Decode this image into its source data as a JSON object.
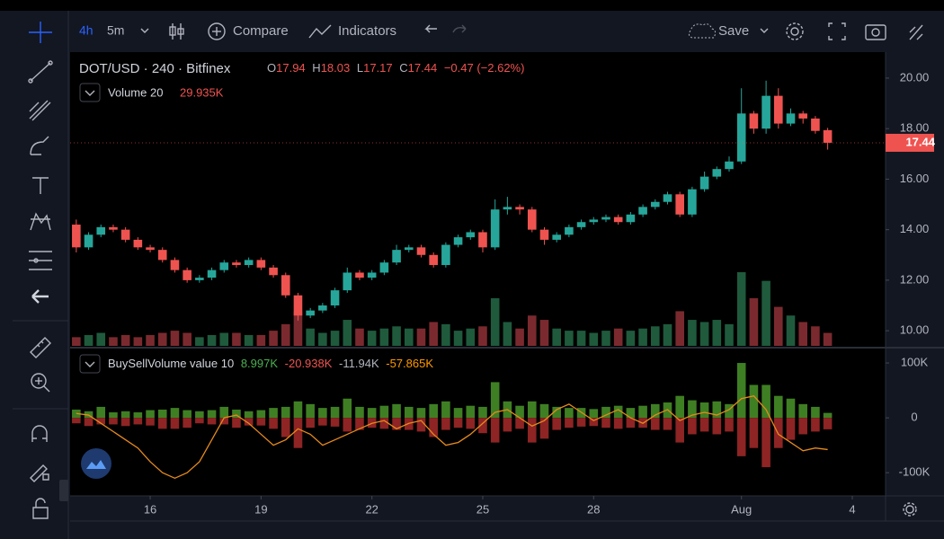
{
  "toolbar": {
    "interval": "4h",
    "interval_alt": "5m",
    "compare": "Compare",
    "indicators": "Indicators",
    "save": "Save"
  },
  "chart_data": [
    {
      "type": "candlestick",
      "title": "DOT/USD · 240 · Bitfinex",
      "ohlc_letters": [
        "O",
        "H",
        "L",
        "C"
      ],
      "change_text": "−0.47 (−2.62%)",
      "x": [
        0,
        1,
        2,
        3,
        4,
        5,
        6,
        7,
        8,
        9,
        10,
        11,
        12,
        13,
        14,
        15,
        16,
        17,
        18,
        19,
        20,
        21,
        22,
        23,
        24,
        25,
        26,
        27,
        28,
        29,
        30,
        31,
        32,
        33,
        34,
        35,
        36,
        37,
        38,
        39,
        40,
        41,
        42,
        43,
        44,
        45,
        46,
        47,
        48,
        49,
        50,
        51,
        52,
        53,
        54,
        55,
        56,
        57,
        58,
        59,
        60,
        61
      ],
      "xlim": [
        -0.5,
        65.7
      ],
      "xticks": [
        {
          "value": 6,
          "label": "16"
        },
        {
          "value": 15,
          "label": "19"
        },
        {
          "value": 24,
          "label": "22"
        },
        {
          "value": 33,
          "label": "25"
        },
        {
          "value": 42,
          "label": "28"
        },
        {
          "value": 54,
          "label": "Aug"
        },
        {
          "value": 63,
          "label": "4"
        }
      ],
      "open": [
        14.2,
        13.3,
        13.8,
        14.1,
        14.0,
        13.6,
        13.3,
        13.2,
        12.8,
        12.4,
        12.0,
        12.1,
        12.4,
        12.7,
        12.6,
        12.8,
        12.5,
        12.2,
        11.4,
        10.6,
        10.8,
        11.0,
        11.6,
        12.3,
        12.1,
        12.3,
        12.7,
        13.2,
        13.3,
        13.0,
        12.6,
        13.4,
        13.7,
        13.9,
        13.3,
        14.8,
        14.9,
        14.8,
        14.0,
        13.6,
        13.8,
        14.1,
        14.3,
        14.4,
        14.5,
        14.3,
        14.6,
        14.9,
        15.1,
        15.4,
        14.6,
        15.6,
        16.1,
        16.4,
        16.7,
        18.6,
        18.0,
        19.3,
        18.2,
        18.6,
        18.4,
        17.94
      ],
      "high": [
        14.4,
        13.9,
        14.2,
        14.2,
        14.1,
        13.7,
        13.4,
        13.3,
        12.9,
        12.5,
        12.2,
        12.5,
        12.8,
        12.8,
        12.9,
        12.9,
        12.6,
        12.3,
        11.5,
        10.9,
        11.1,
        11.7,
        12.5,
        12.4,
        12.4,
        12.8,
        13.4,
        13.4,
        13.4,
        13.1,
        13.5,
        13.8,
        14.0,
        14.0,
        15.2,
        15.3,
        15.0,
        14.9,
        14.1,
        13.9,
        14.2,
        14.4,
        14.5,
        14.6,
        14.6,
        14.7,
        15.0,
        15.2,
        15.5,
        15.5,
        15.7,
        16.3,
        16.5,
        16.9,
        19.6,
        18.7,
        19.9,
        19.6,
        18.8,
        18.7,
        18.5,
        18.03
      ],
      "low": [
        13.1,
        13.2,
        13.7,
        13.9,
        13.5,
        13.2,
        13.1,
        12.7,
        12.3,
        11.9,
        11.9,
        12.0,
        12.3,
        12.5,
        12.5,
        12.4,
        12.1,
        11.3,
        10.4,
        10.5,
        10.7,
        10.9,
        11.5,
        12.0,
        12.0,
        12.2,
        12.6,
        13.1,
        12.9,
        12.5,
        12.5,
        13.3,
        13.6,
        13.1,
        13.2,
        14.6,
        14.6,
        13.9,
        13.4,
        13.5,
        13.7,
        14.0,
        14.2,
        14.3,
        14.2,
        14.2,
        14.5,
        14.8,
        15.0,
        14.5,
        14.5,
        15.5,
        16.0,
        16.3,
        16.6,
        17.8,
        17.8,
        18.0,
        18.1,
        18.2,
        17.8,
        17.17
      ],
      "close": [
        13.3,
        13.8,
        14.1,
        14.0,
        13.6,
        13.3,
        13.2,
        12.8,
        12.4,
        12.0,
        12.1,
        12.4,
        12.7,
        12.6,
        12.8,
        12.5,
        12.2,
        11.4,
        10.6,
        10.8,
        11.0,
        11.6,
        12.3,
        12.1,
        12.3,
        12.7,
        13.2,
        13.3,
        13.0,
        12.6,
        13.4,
        13.7,
        13.9,
        13.3,
        14.8,
        14.9,
        14.8,
        14.0,
        13.6,
        13.8,
        14.1,
        14.3,
        14.4,
        14.5,
        14.3,
        14.6,
        14.9,
        15.1,
        15.4,
        14.6,
        15.6,
        16.1,
        16.4,
        16.7,
        18.6,
        18.0,
        19.3,
        18.2,
        18.6,
        18.4,
        17.91,
        17.44
      ],
      "up_color": "#26a69a",
      "down_color": "#ef5350",
      "ylim": [
        9.4,
        21.03
      ],
      "yticks": [
        {
          "value": 10,
          "label": "10.00"
        },
        {
          "value": 12,
          "label": "12.00"
        },
        {
          "value": 14,
          "label": "14.00"
        },
        {
          "value": 16,
          "label": "16.00"
        },
        {
          "value": 18,
          "label": "18.00"
        },
        {
          "value": 20,
          "label": "20.00"
        }
      ],
      "volume": {
        "name": "Volume 20",
        "up_color": "#1f5a3c",
        "down_color": "#7a2a2e",
        "values": [
          20,
          25,
          30,
          20,
          25,
          20,
          25,
          30,
          35,
          30,
          20,
          25,
          30,
          30,
          25,
          25,
          35,
          50,
          80,
          40,
          30,
          35,
          60,
          40,
          35,
          40,
          45,
          40,
          40,
          55,
          50,
          35,
          40,
          45,
          110,
          55,
          40,
          70,
          60,
          40,
          35,
          35,
          30,
          35,
          40,
          35,
          40,
          45,
          50,
          80,
          60,
          55,
          60,
          50,
          170,
          110,
          150,
          90,
          70,
          55,
          45,
          29.935
        ],
        "last_value_label": "29.935K"
      }
    },
    {
      "type": "bar",
      "title": "BuySellVolume value 10",
      "ylim": [
        -139,
        123
      ],
      "yticks": [
        {
          "value": 100,
          "label": "100K"
        },
        0,
        {
          "value": -100,
          "label": "-100K"
        }
      ],
      "series": [
        {
          "color": "#3f7f23",
          "values": [
            15,
            12,
            20,
            10,
            12,
            10,
            14,
            15,
            18,
            14,
            12,
            14,
            20,
            15,
            12,
            14,
            18,
            20,
            30,
            25,
            18,
            20,
            35,
            20,
            18,
            22,
            25,
            20,
            18,
            25,
            30,
            18,
            22,
            20,
            65,
            30,
            22,
            30,
            25,
            20,
            18,
            18,
            16,
            20,
            22,
            18,
            22,
            25,
            28,
            40,
            32,
            28,
            30,
            25,
            100,
            60,
            60,
            40,
            35,
            25,
            20,
            8.997
          ],
          "last_value_label": "8.997K",
          "label_color": "#4caf50"
        },
        {
          "color": "#8e2424",
          "values": [
            -10,
            -15,
            -12,
            -12,
            -15,
            -12,
            -14,
            -20,
            -20,
            -18,
            -10,
            -12,
            -12,
            -18,
            -14,
            -14,
            -20,
            -35,
            -55,
            -18,
            -14,
            -16,
            -25,
            -22,
            -18,
            -20,
            -22,
            -22,
            -25,
            -35,
            -22,
            -18,
            -20,
            -28,
            -45,
            -25,
            -20,
            -45,
            -38,
            -22,
            -18,
            -16,
            -15,
            -18,
            -20,
            -18,
            -18,
            -22,
            -22,
            -45,
            -30,
            -25,
            -30,
            -25,
            -70,
            -55,
            -90,
            -55,
            -40,
            -30,
            -25,
            -20.938
          ],
          "last_value_label": "-20.938K",
          "label_color": "#ef5350"
        },
        {
          "type": "line",
          "color": "#e68a1c",
          "values": [
            8,
            5,
            -10,
            -25,
            -40,
            -55,
            -80,
            -100,
            -110,
            -100,
            -80,
            -40,
            0,
            5,
            -10,
            -30,
            -50,
            -40,
            -20,
            -30,
            -50,
            -40,
            -30,
            -20,
            -10,
            -5,
            -20,
            -10,
            -5,
            -30,
            -50,
            -45,
            -30,
            -10,
            10,
            15,
            0,
            -15,
            -5,
            15,
            25,
            10,
            -5,
            5,
            15,
            0,
            -10,
            5,
            15,
            -5,
            5,
            10,
            5,
            15,
            35,
            40,
            15,
            -30,
            -45,
            -60,
            -55,
            -57.865
          ],
          "last_value_label": "-57.865K",
          "label_color": "#ff9800"
        }
      ],
      "net": {
        "value": -11.94,
        "label": "-11.94K"
      }
    }
  ]
}
